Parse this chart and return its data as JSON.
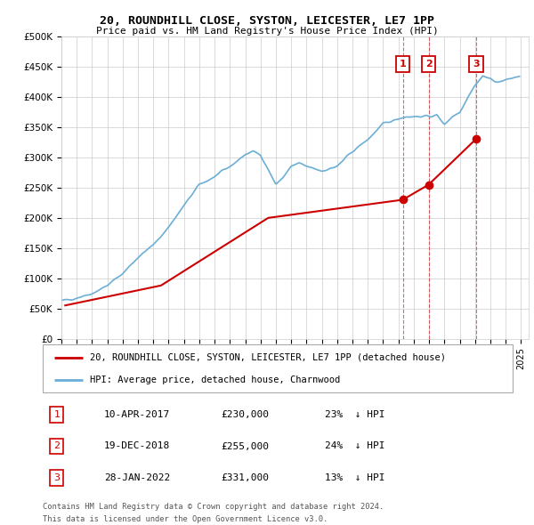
{
  "title": "20, ROUNDHILL CLOSE, SYSTON, LEICESTER, LE7 1PP",
  "subtitle": "Price paid vs. HM Land Registry's House Price Index (HPI)",
  "hpi_label": "HPI: Average price, detached house, Charnwood",
  "price_label": "20, ROUNDHILL CLOSE, SYSTON, LEICESTER, LE7 1PP (detached house)",
  "hpi_color": "#6baed6",
  "price_color": "#cc0000",
  "vline_color": "#cc0000",
  "marker_box_color": "#cc0000",
  "background_color": "#ffffff",
  "grid_color": "#cccccc",
  "ylim": [
    0,
    500000
  ],
  "yticks": [
    0,
    50000,
    100000,
    150000,
    200000,
    250000,
    300000,
    350000,
    400000,
    450000,
    500000
  ],
  "ytick_labels": [
    "£0",
    "£50K",
    "£100K",
    "£150K",
    "£200K",
    "£250K",
    "£300K",
    "£350K",
    "£400K",
    "£450K",
    "£500K"
  ],
  "transactions": [
    {
      "id": 1,
      "date": "10-APR-2017",
      "year": 2017.28,
      "price": 230000,
      "pct": "23%",
      "dir": "↓"
    },
    {
      "id": 2,
      "date": "19-DEC-2018",
      "year": 2018.97,
      "price": 255000,
      "pct": "24%",
      "dir": "↓"
    },
    {
      "id": 3,
      "date": "28-JAN-2022",
      "year": 2022.08,
      "price": 331000,
      "pct": "13%",
      "dir": "↓"
    }
  ],
  "footer1": "Contains HM Land Registry data © Crown copyright and database right 2024.",
  "footer2": "This data is licensed under the Open Government Licence v3.0.",
  "price_x": [
    1995.25,
    2001.5,
    2008.5,
    2017.28,
    2018.97,
    2022.08
  ],
  "price_y": [
    55000,
    88000,
    200000,
    230000,
    255000,
    331000
  ]
}
